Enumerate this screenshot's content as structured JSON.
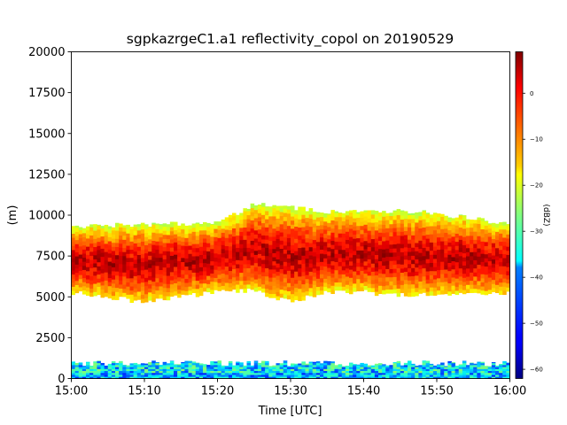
{
  "chart_data": {
    "type": "heatmap",
    "title": "sgpkazrgeC1.a1 reflectivity_copol on 20190529",
    "xlabel": "Time [UTC]",
    "ylabel": "(m)",
    "xlim": [
      "15:00",
      "16:00"
    ],
    "ylim": [
      0,
      20000
    ],
    "x_ticks": [
      "15:00",
      "15:10",
      "15:20",
      "15:30",
      "15:40",
      "15:50",
      "16:00"
    ],
    "y_ticks": [
      0,
      2500,
      5000,
      7500,
      10000,
      12500,
      15000,
      17500,
      20000
    ],
    "colorbar": {
      "label": "(dBZ)",
      "colormap": "jet",
      "range": [
        -62,
        9
      ],
      "ticks": [
        0,
        -10,
        -20,
        -30,
        -40,
        -50,
        -60
      ]
    },
    "features": [
      {
        "name": "upper cloud layer",
        "time_range": [
          "15:00",
          "16:00"
        ],
        "base_top_m": [
          [
            "15:00",
            5300,
            9200
          ],
          [
            "15:05",
            5000,
            9400
          ],
          [
            "15:10",
            4700,
            9400
          ],
          [
            "15:15",
            5000,
            9500
          ],
          [
            "15:20",
            5300,
            9500
          ],
          [
            "15:25",
            5400,
            10700
          ],
          [
            "15:30",
            4700,
            10500
          ],
          [
            "15:35",
            5300,
            10200
          ],
          [
            "15:40",
            5300,
            10200
          ],
          [
            "15:45",
            5100,
            10300
          ],
          [
            "15:50",
            5200,
            10100
          ],
          [
            "15:55",
            5200,
            9800
          ],
          [
            "16:00",
            5300,
            9400
          ]
        ],
        "core_dbz": 5,
        "edge_dbz": -22
      },
      {
        "name": "low-level clutter layer",
        "time_range": [
          "15:00",
          "16:00"
        ],
        "height_range_m": [
          0,
          1100
        ],
        "dbz_range": [
          -62,
          -25
        ]
      }
    ]
  }
}
